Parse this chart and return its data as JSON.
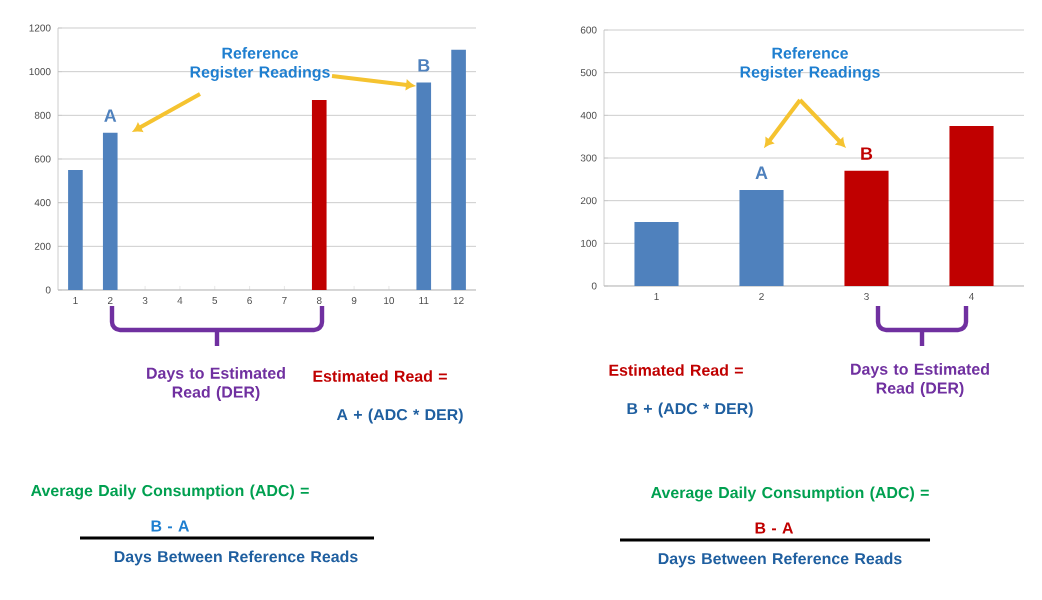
{
  "chart_data": [
    {
      "type": "bar",
      "categories": [
        "1",
        "2",
        "3",
        "4",
        "5",
        "6",
        "7",
        "8",
        "9",
        "10",
        "11",
        "12"
      ],
      "values": [
        550,
        720,
        null,
        null,
        null,
        null,
        null,
        870,
        null,
        null,
        950,
        1100
      ],
      "colors": [
        "#4f81bd",
        "#4f81bd",
        "#4f81bd",
        "#4f81bd",
        "#4f81bd",
        "#4f81bd",
        "#4f81bd",
        "#c00000",
        "#4f81bd",
        "#4f81bd",
        "#4f81bd",
        "#4f81bd"
      ],
      "ylim": [
        0,
        1200
      ],
      "yticks": [
        0,
        200,
        400,
        600,
        800,
        1000,
        1200
      ],
      "grid": "y",
      "annotations": [
        {
          "text": "A",
          "x": "2",
          "y": 720
        },
        {
          "text": "B",
          "x": "11",
          "y": 950
        },
        "Reference Register Readings",
        "Days to Estimated Read (DER)",
        "Estimated Read =",
        "A + (ADC * DER)",
        "Average Daily Consumption (ADC) =",
        "B - A",
        "Days Between Reference Reads"
      ]
    },
    {
      "type": "bar",
      "categories": [
        "1",
        "2",
        "3",
        "4"
      ],
      "values": [
        150,
        225,
        270,
        375
      ],
      "colors": [
        "#4f81bd",
        "#4f81bd",
        "#c00000",
        "#c00000"
      ],
      "ylim": [
        0,
        600
      ],
      "yticks": [
        0,
        100,
        200,
        300,
        400,
        500,
        600
      ],
      "grid": "y",
      "annotations": [
        {
          "text": "A",
          "x": "2",
          "y": 225
        },
        {
          "text": "B",
          "x": "3",
          "y": 270
        },
        "Reference Register Readings",
        "Days to Estimated Read (DER)",
        "Estimated Read =",
        "B + (ADC * DER)",
        "Average Daily Consumption (ADC) =",
        "B - A",
        "Days Between Reference Reads"
      ]
    }
  ]
}
